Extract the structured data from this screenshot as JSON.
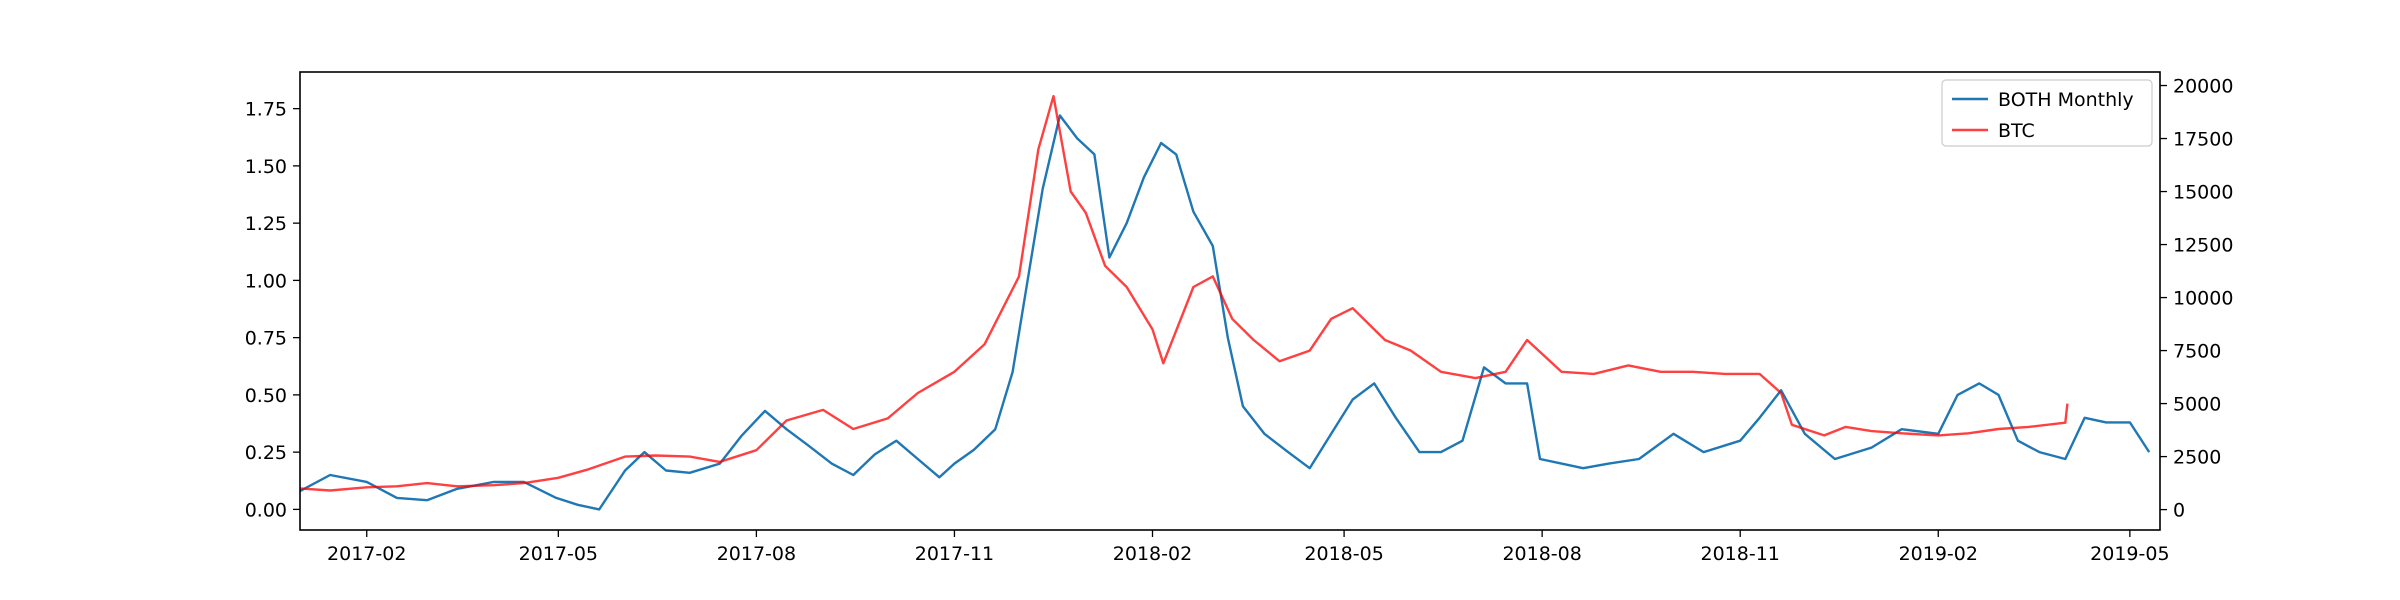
{
  "chart_data": {
    "type": "line",
    "title": "",
    "xlabel": "",
    "ylabel_left": "",
    "ylabel_right": "",
    "x_range": [
      "2017-01-01",
      "2019-05-15"
    ],
    "ylim_left": [
      -0.09,
      1.91
    ],
    "ylim_right": [
      -962,
      20638
    ],
    "x_ticks": [
      {
        "date": "2017-02-01",
        "label": "2017-02"
      },
      {
        "date": "2017-05-01",
        "label": "2017-05"
      },
      {
        "date": "2017-08-01",
        "label": "2017-08"
      },
      {
        "date": "2017-11-01",
        "label": "2017-11"
      },
      {
        "date": "2018-02-01",
        "label": "2018-02"
      },
      {
        "date": "2018-05-01",
        "label": "2018-05"
      },
      {
        "date": "2018-08-01",
        "label": "2018-08"
      },
      {
        "date": "2018-11-01",
        "label": "2018-11"
      },
      {
        "date": "2019-02-01",
        "label": "2019-02"
      },
      {
        "date": "2019-05-01",
        "label": "2019-05"
      }
    ],
    "y_ticks_left": [
      0.0,
      0.25,
      0.5,
      0.75,
      1.0,
      1.25,
      1.5,
      1.75
    ],
    "y_tick_labels_left": [
      "0.00",
      "0.25",
      "0.50",
      "0.75",
      "1.00",
      "1.25",
      "1.50",
      "1.75"
    ],
    "y_ticks_right": [
      0,
      2500,
      5000,
      7500,
      10000,
      12500,
      15000,
      17500,
      20000
    ],
    "y_tick_labels_right": [
      "0",
      "2500",
      "5000",
      "7500",
      "10000",
      "12500",
      "15000",
      "17500",
      "20000"
    ],
    "grid": false,
    "legend_position": "top-right",
    "series": [
      {
        "name": "BOTH Monthly",
        "axis": "left",
        "color": "#1f77b4",
        "x": [
          "2017-01-01",
          "2017-01-15",
          "2017-02-01",
          "2017-02-15",
          "2017-03-01",
          "2017-03-15",
          "2017-04-01",
          "2017-04-15",
          "2017-04-30",
          "2017-05-10",
          "2017-05-20",
          "2017-06-01",
          "2017-06-10",
          "2017-06-20",
          "2017-07-01",
          "2017-07-15",
          "2017-07-25",
          "2017-08-05",
          "2017-08-15",
          "2017-08-25",
          "2017-09-05",
          "2017-09-15",
          "2017-09-25",
          "2017-10-05",
          "2017-10-15",
          "2017-10-25",
          "2017-11-01",
          "2017-11-10",
          "2017-11-20",
          "2017-11-28",
          "2017-12-05",
          "2017-12-12",
          "2017-12-20",
          "2017-12-28",
          "2018-01-05",
          "2018-01-12",
          "2018-01-20",
          "2018-01-28",
          "2018-02-05",
          "2018-02-12",
          "2018-02-20",
          "2018-03-01",
          "2018-03-08",
          "2018-03-15",
          "2018-03-25",
          "2018-04-05",
          "2018-04-15",
          "2018-04-25",
          "2018-05-05",
          "2018-05-15",
          "2018-05-25",
          "2018-06-05",
          "2018-06-15",
          "2018-06-25",
          "2018-07-05",
          "2018-07-15",
          "2018-07-25",
          "2018-07-31",
          "2018-08-10",
          "2018-08-20",
          "2018-09-01",
          "2018-09-15",
          "2018-10-01",
          "2018-10-15",
          "2018-11-01",
          "2018-11-10",
          "2018-11-20",
          "2018-12-01",
          "2018-12-15",
          "2019-01-01",
          "2019-01-15",
          "2019-02-01",
          "2019-02-10",
          "2019-02-20",
          "2019-03-01",
          "2019-03-10",
          "2019-03-20",
          "2019-04-01",
          "2019-04-10",
          "2019-04-20",
          "2019-05-01",
          "2019-05-10"
        ],
        "values": [
          0.08,
          0.15,
          0.12,
          0.05,
          0.04,
          0.09,
          0.12,
          0.12,
          0.05,
          0.02,
          0.0,
          0.17,
          0.25,
          0.17,
          0.16,
          0.2,
          0.32,
          0.43,
          0.35,
          0.28,
          0.2,
          0.15,
          0.24,
          0.3,
          0.22,
          0.14,
          0.2,
          0.26,
          0.35,
          0.6,
          1.0,
          1.4,
          1.72,
          1.62,
          1.55,
          1.1,
          1.25,
          1.45,
          1.6,
          1.55,
          1.3,
          1.15,
          0.75,
          0.45,
          0.33,
          0.25,
          0.18,
          0.33,
          0.48,
          0.55,
          0.4,
          0.25,
          0.25,
          0.3,
          0.62,
          0.55,
          0.55,
          0.22,
          0.2,
          0.18,
          0.2,
          0.22,
          0.33,
          0.25,
          0.3,
          0.4,
          0.52,
          0.33,
          0.22,
          0.27,
          0.35,
          0.33,
          0.5,
          0.55,
          0.5,
          0.3,
          0.25,
          0.22,
          0.4,
          0.38,
          0.38,
          0.25
        ]
      },
      {
        "name": "BTC",
        "axis": "right",
        "color": "#ff0000",
        "x": [
          "2017-01-01",
          "2017-01-15",
          "2017-02-01",
          "2017-02-15",
          "2017-03-01",
          "2017-03-15",
          "2017-04-01",
          "2017-04-15",
          "2017-05-01",
          "2017-05-15",
          "2017-06-01",
          "2017-06-15",
          "2017-07-01",
          "2017-07-15",
          "2017-08-01",
          "2017-08-15",
          "2017-09-01",
          "2017-09-15",
          "2017-10-01",
          "2017-10-15",
          "2017-11-01",
          "2017-11-15",
          "2017-12-01",
          "2017-12-10",
          "2017-12-17",
          "2017-12-25",
          "2018-01-01",
          "2018-01-10",
          "2018-01-20",
          "2018-02-01",
          "2018-02-06",
          "2018-02-20",
          "2018-03-01",
          "2018-03-10",
          "2018-03-20",
          "2018-04-01",
          "2018-04-15",
          "2018-04-25",
          "2018-05-05",
          "2018-05-20",
          "2018-06-01",
          "2018-06-15",
          "2018-07-01",
          "2018-07-15",
          "2018-07-25",
          "2018-08-10",
          "2018-08-25",
          "2018-09-10",
          "2018-09-25",
          "2018-10-10",
          "2018-10-25",
          "2018-11-10",
          "2018-11-20",
          "2018-11-25",
          "2018-12-10",
          "2018-12-20",
          "2019-01-01",
          "2019-01-15",
          "2019-02-01",
          "2019-02-15",
          "2019-03-01",
          "2019-03-15",
          "2019-04-01",
          "2019-04-02"
        ],
        "values": [
          1000,
          900,
          1050,
          1100,
          1250,
          1100,
          1150,
          1250,
          1500,
          1900,
          2500,
          2550,
          2500,
          2250,
          2800,
          4200,
          4700,
          3800,
          4300,
          5500,
          6500,
          7800,
          11000,
          17000,
          19500,
          15000,
          14000,
          11500,
          10500,
          8500,
          6900,
          10500,
          11000,
          9000,
          8000,
          7000,
          7500,
          9000,
          9500,
          8000,
          7500,
          6500,
          6200,
          6500,
          8000,
          6500,
          6400,
          6800,
          6500,
          6500,
          6400,
          6400,
          5500,
          4000,
          3500,
          3900,
          3700,
          3600,
          3500,
          3600,
          3800,
          3900,
          4100,
          5000
        ]
      }
    ]
  }
}
